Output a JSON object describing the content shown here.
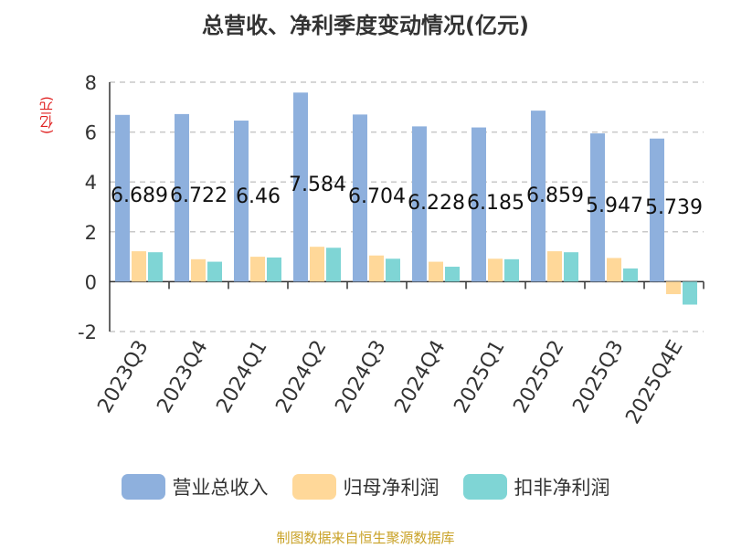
{
  "chart_data": {
    "type": "bar",
    "title": "总营收、净利季度变动情况(亿元)",
    "ylabel": "(亿元)",
    "ylim": [
      -2,
      8
    ],
    "yticks": [
      8,
      6,
      4,
      2,
      0,
      -2
    ],
    "grid": true,
    "legend_position": "bottom",
    "categories": [
      "2023Q3",
      "2023Q4",
      "2024Q1",
      "2024Q2",
      "2024Q3",
      "2024Q4",
      "2025Q1",
      "2025Q2",
      "2025Q3",
      "2025Q4E"
    ],
    "series": [
      {
        "name": "营业总收入",
        "color": "#8eb0dd",
        "values": [
          6.689,
          6.722,
          6.46,
          7.584,
          6.704,
          6.228,
          6.185,
          6.859,
          5.947,
          5.739
        ],
        "labels": [
          "6.689",
          "6.722",
          "6.46",
          "7.584",
          "6.704",
          "6.228",
          "6.185",
          "6.859",
          "5.947",
          "5.739"
        ]
      },
      {
        "name": "归母净利润",
        "color": "#ffd899",
        "values": [
          1.22,
          0.9,
          1.0,
          1.4,
          1.05,
          0.8,
          0.92,
          1.22,
          0.95,
          -0.5
        ]
      },
      {
        "name": "扣非净利润",
        "color": "#7fd5d5",
        "values": [
          1.18,
          0.8,
          0.97,
          1.36,
          0.92,
          0.6,
          0.9,
          1.18,
          0.53,
          -0.92
        ]
      }
    ]
  },
  "source": "制图数据来自恒生聚源数据库"
}
